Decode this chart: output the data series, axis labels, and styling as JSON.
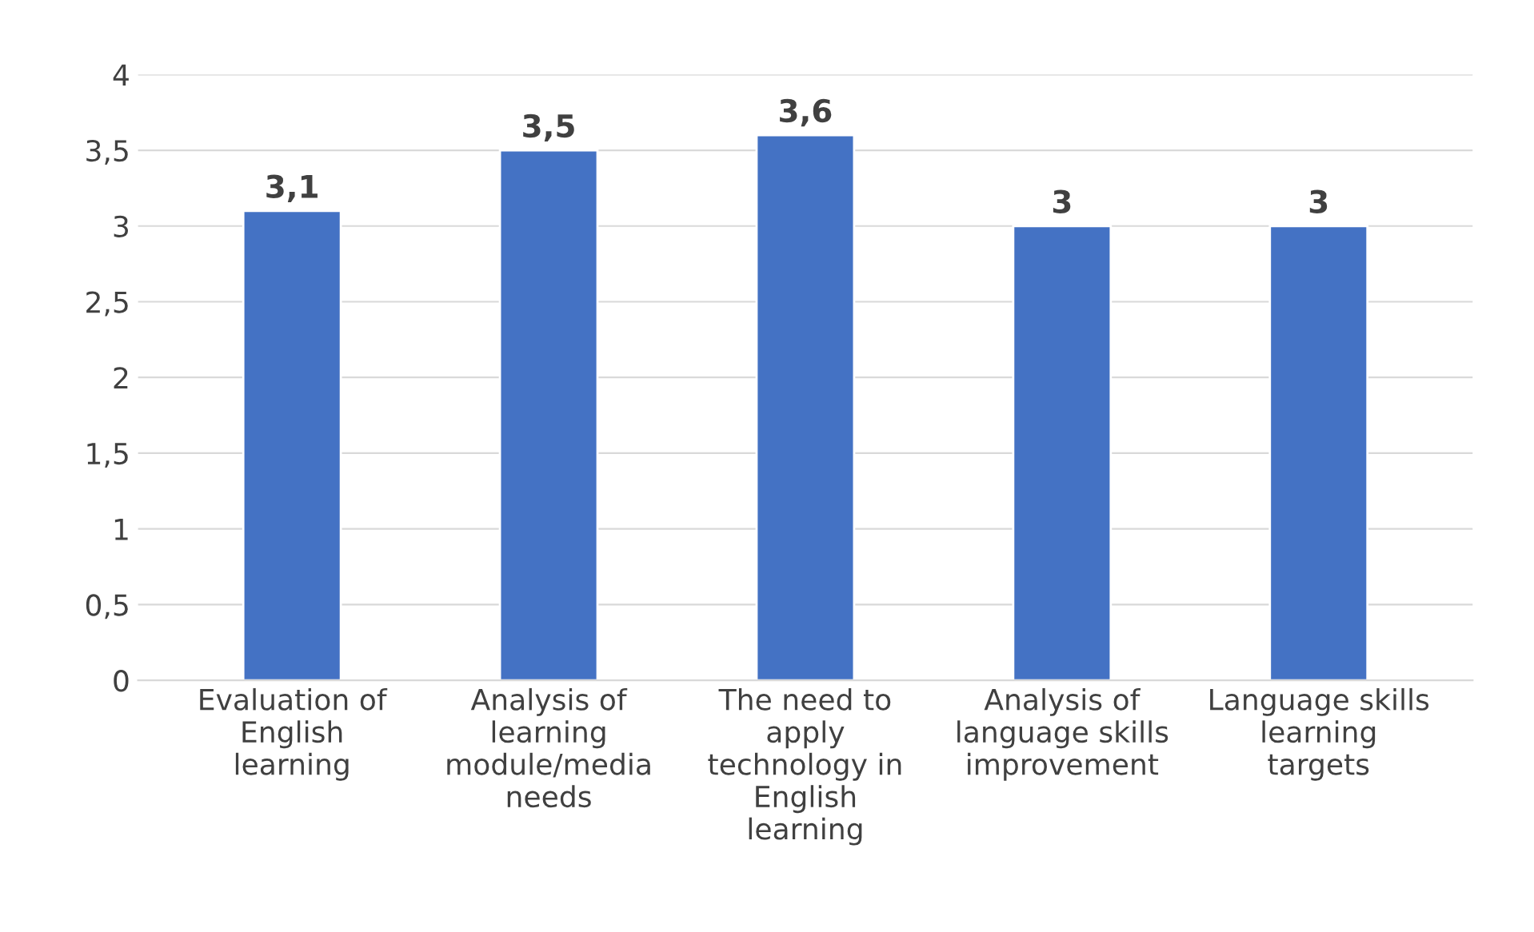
{
  "chart_data": {
    "type": "bar",
    "categories": [
      "Evaluation of English learning",
      "Analysis of learning module/media needs",
      "The need to apply technology in English learning",
      "Analysis of language skills improvement",
      "Language skills learning targets"
    ],
    "values": [
      3.1,
      3.5,
      3.6,
      3,
      3
    ],
    "value_labels": [
      "3,1",
      "3,5",
      "3,6",
      "3",
      "3"
    ],
    "color": "#4472c4",
    "ylim": [
      0,
      4
    ],
    "yticks": [
      0,
      {
        "value": 0.5,
        "label": "0,5"
      },
      1,
      {
        "value": 1.5,
        "label": "1,5"
      },
      2,
      {
        "value": 2.5,
        "label": "2,5"
      },
      3,
      {
        "value": 3.5,
        "label": "3,5"
      },
      4
    ],
    "grid": "y",
    "legend": false
  }
}
